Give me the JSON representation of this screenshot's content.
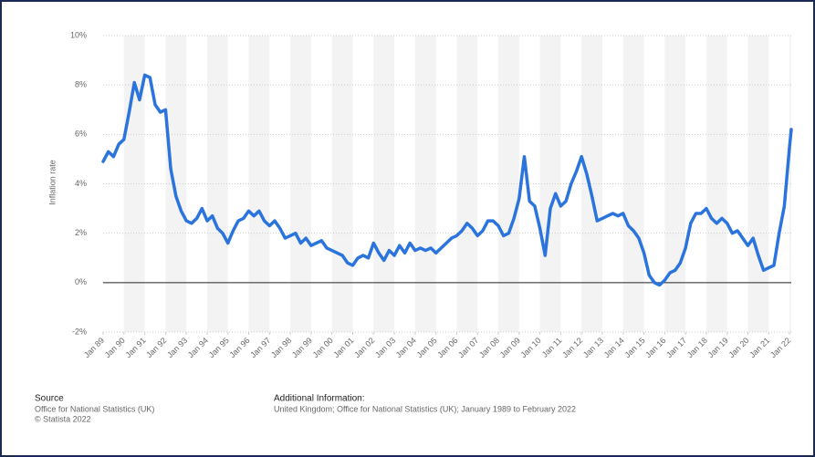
{
  "chart_data": {
    "type": "line",
    "y_label": "Inflation rate",
    "x": [
      "1989-01",
      "1989-04",
      "1989-07",
      "1989-10",
      "1990-01",
      "1990-04",
      "1990-07",
      "1990-10",
      "1991-01",
      "1991-04",
      "1991-07",
      "1991-10",
      "1992-01",
      "1992-04",
      "1992-07",
      "1992-10",
      "1993-01",
      "1993-04",
      "1993-07",
      "1993-10",
      "1994-01",
      "1994-04",
      "1994-07",
      "1994-10",
      "1995-01",
      "1995-04",
      "1995-07",
      "1995-10",
      "1996-01",
      "1996-04",
      "1996-07",
      "1996-10",
      "1997-01",
      "1997-04",
      "1997-07",
      "1997-10",
      "1998-01",
      "1998-04",
      "1998-07",
      "1998-10",
      "1999-01",
      "1999-04",
      "1999-07",
      "1999-10",
      "2000-01",
      "2000-04",
      "2000-07",
      "2000-10",
      "2001-01",
      "2001-04",
      "2001-07",
      "2001-10",
      "2002-01",
      "2002-04",
      "2002-07",
      "2002-10",
      "2003-01",
      "2003-04",
      "2003-07",
      "2003-10",
      "2004-01",
      "2004-04",
      "2004-07",
      "2004-10",
      "2005-01",
      "2005-04",
      "2005-07",
      "2005-10",
      "2006-01",
      "2006-04",
      "2006-07",
      "2006-10",
      "2007-01",
      "2007-04",
      "2007-07",
      "2007-10",
      "2008-01",
      "2008-04",
      "2008-07",
      "2008-10",
      "2009-01",
      "2009-04",
      "2009-07",
      "2009-10",
      "2010-01",
      "2010-04",
      "2010-07",
      "2010-10",
      "2011-01",
      "2011-04",
      "2011-07",
      "2011-10",
      "2012-01",
      "2012-04",
      "2012-07",
      "2012-10",
      "2013-01",
      "2013-04",
      "2013-07",
      "2013-10",
      "2014-01",
      "2014-04",
      "2014-07",
      "2014-10",
      "2015-01",
      "2015-04",
      "2015-07",
      "2015-10",
      "2016-01",
      "2016-04",
      "2016-07",
      "2016-10",
      "2017-01",
      "2017-04",
      "2017-07",
      "2017-10",
      "2018-01",
      "2018-04",
      "2018-07",
      "2018-10",
      "2019-01",
      "2019-04",
      "2019-07",
      "2019-10",
      "2020-01",
      "2020-04",
      "2020-07",
      "2020-10",
      "2021-01",
      "2021-04",
      "2021-07",
      "2021-10",
      "2022-01",
      "2022-02"
    ],
    "series": [
      {
        "color": "#2b74dd",
        "values": [
          4.9,
          5.3,
          5.1,
          5.6,
          5.8,
          6.9,
          8.1,
          7.4,
          8.4,
          8.3,
          7.2,
          6.9,
          7.0,
          4.6,
          3.5,
          2.9,
          2.5,
          2.4,
          2.6,
          3.0,
          2.5,
          2.7,
          2.2,
          2.0,
          1.6,
          2.1,
          2.5,
          2.6,
          2.9,
          2.7,
          2.9,
          2.5,
          2.3,
          2.5,
          2.2,
          1.8,
          1.9,
          2.0,
          1.6,
          1.8,
          1.5,
          1.6,
          1.7,
          1.4,
          1.3,
          1.2,
          1.1,
          0.8,
          0.7,
          1.0,
          1.1,
          1.0,
          1.6,
          1.2,
          0.9,
          1.3,
          1.1,
          1.5,
          1.2,
          1.6,
          1.3,
          1.4,
          1.3,
          1.4,
          1.2,
          1.4,
          1.6,
          1.8,
          1.9,
          2.1,
          2.4,
          2.2,
          1.9,
          2.1,
          2.5,
          2.5,
          2.3,
          1.9,
          2.0,
          2.6,
          3.4,
          5.1,
          3.3,
          3.1,
          2.2,
          1.1,
          3.0,
          3.6,
          3.1,
          3.3,
          4.0,
          4.5,
          5.1,
          4.4,
          3.5,
          2.5,
          2.6,
          2.7,
          2.8,
          2.7,
          2.8,
          2.3,
          2.1,
          1.8,
          1.2,
          0.3,
          0.0,
          -0.1,
          0.1,
          0.4,
          0.5,
          0.8,
          1.4,
          2.4,
          2.8,
          2.8,
          3.0,
          2.6,
          2.4,
          2.6,
          2.4,
          2.0,
          2.1,
          1.8,
          1.5,
          1.8,
          1.1,
          0.5,
          0.6,
          0.7,
          2.0,
          3.1,
          5.5,
          6.2
        ]
      }
    ],
    "xlim": [
      "1989-01",
      "2022-02"
    ],
    "xticks": [
      {
        "value": "1989-01",
        "label": "Jan 89"
      },
      {
        "value": "1990-01",
        "label": "Jan 90"
      },
      {
        "value": "1991-01",
        "label": "Jan 91"
      },
      {
        "value": "1992-01",
        "label": "Jan 92"
      },
      {
        "value": "1993-01",
        "label": "Jan 93"
      },
      {
        "value": "1994-01",
        "label": "Jan 94"
      },
      {
        "value": "1995-01",
        "label": "Jan 95"
      },
      {
        "value": "1996-01",
        "label": "Jan 96"
      },
      {
        "value": "1997-01",
        "label": "Jan 97"
      },
      {
        "value": "1998-01",
        "label": "Jan 98"
      },
      {
        "value": "1999-01",
        "label": "Jan 99"
      },
      {
        "value": "2000-01",
        "label": "Jan 00"
      },
      {
        "value": "2001-01",
        "label": "Jan 01"
      },
      {
        "value": "2002-01",
        "label": "Jan 02"
      },
      {
        "value": "2003-01",
        "label": "Jan 03"
      },
      {
        "value": "2004-01",
        "label": "Jan 04"
      },
      {
        "value": "2005-01",
        "label": "Jan 05"
      },
      {
        "value": "2006-01",
        "label": "Jan 06"
      },
      {
        "value": "2007-01",
        "label": "Jan 07"
      },
      {
        "value": "2008-01",
        "label": "Jan 08"
      },
      {
        "value": "2009-01",
        "label": "Jan 09"
      },
      {
        "value": "2010-01",
        "label": "Jan 10"
      },
      {
        "value": "2011-01",
        "label": "Jan 11"
      },
      {
        "value": "2012-01",
        "label": "Jan 12"
      },
      {
        "value": "2013-01",
        "label": "Jan 13"
      },
      {
        "value": "2014-01",
        "label": "Jan 14"
      },
      {
        "value": "2015-01",
        "label": "Jan 15"
      },
      {
        "value": "2016-01",
        "label": "Jan 16"
      },
      {
        "value": "2017-01",
        "label": "Jan 17"
      },
      {
        "value": "2018-01",
        "label": "Jan 18"
      },
      {
        "value": "2019-01",
        "label": "Jan 19"
      },
      {
        "value": "2020-01",
        "label": "Jan 20"
      },
      {
        "value": "2021-01",
        "label": "Jan 21"
      },
      {
        "value": "2022-01",
        "label": "Jan 22"
      }
    ],
    "ylim": [
      -2,
      10
    ],
    "yticks": [
      {
        "value": -2,
        "label": "-2%"
      },
      {
        "value": 0,
        "label": "0%"
      },
      {
        "value": 2,
        "label": "2%"
      },
      {
        "value": 4,
        "label": "4%"
      },
      {
        "value": 6,
        "label": "6%"
      },
      {
        "value": 8,
        "label": "8%"
      },
      {
        "value": 10,
        "label": "10%"
      }
    ],
    "grid": true
  },
  "footer": {
    "source_title": "Source",
    "source_lines": [
      "Office for National Statistics (UK)",
      "© Statista 2022"
    ],
    "info_title": "Additional Information:",
    "info_text": "United Kingdom; Office for National Statistics (UK); January 1989 to February 2022"
  }
}
